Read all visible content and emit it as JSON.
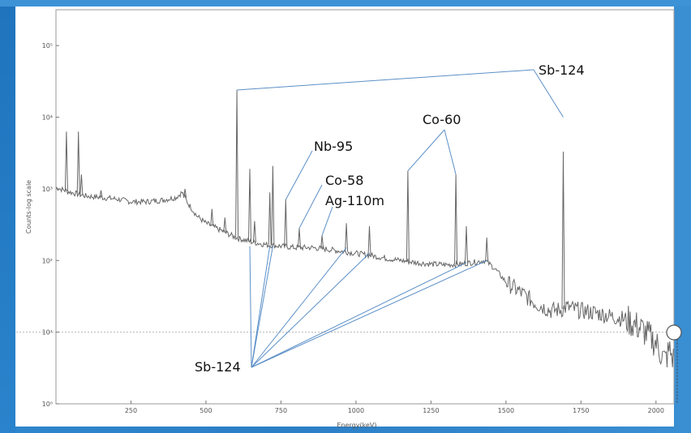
{
  "chart_data": {
    "type": "line",
    "title": "",
    "xlabel": "Energy(keV)",
    "ylabel": "Counts-log scale",
    "x_ticks": [
      250,
      500,
      750,
      1000,
      1250,
      1500,
      1750,
      2000
    ],
    "y_ticks": [
      {
        "exp": 0,
        "label": "10⁰"
      },
      {
        "exp": 1,
        "label": "10¹"
      },
      {
        "exp": 2,
        "label": "10²"
      },
      {
        "exp": 3,
        "label": "10³"
      },
      {
        "exp": 4,
        "label": "10⁴"
      },
      {
        "exp": 5,
        "label": "10⁵"
      }
    ],
    "xlim": [
      0,
      2060
    ],
    "ylim_log10": [
      0,
      5.5
    ],
    "y_scale": "log",
    "grid": false,
    "reference_line": {
      "y_log10": 1.0,
      "style": "dotted"
    },
    "series": [
      {
        "color": "#666666",
        "continuum": [
          [
            0,
            3.02
          ],
          [
            50,
            2.95
          ],
          [
            100,
            2.9
          ],
          [
            150,
            2.88
          ],
          [
            200,
            2.86
          ],
          [
            250,
            2.82
          ],
          [
            300,
            2.82
          ],
          [
            350,
            2.84
          ],
          [
            400,
            2.88
          ],
          [
            420,
            2.95
          ],
          [
            440,
            2.8
          ],
          [
            470,
            2.62
          ],
          [
            500,
            2.52
          ],
          [
            550,
            2.42
          ],
          [
            600,
            2.32
          ],
          [
            650,
            2.26
          ],
          [
            700,
            2.22
          ],
          [
            750,
            2.2
          ],
          [
            800,
            2.18
          ],
          [
            850,
            2.18
          ],
          [
            900,
            2.16
          ],
          [
            950,
            2.13
          ],
          [
            1000,
            2.1
          ],
          [
            1050,
            2.07
          ],
          [
            1100,
            2.03
          ],
          [
            1150,
            2.0
          ],
          [
            1200,
            1.97
          ],
          [
            1250,
            1.95
          ],
          [
            1300,
            1.94
          ],
          [
            1350,
            1.95
          ],
          [
            1400,
            1.98
          ],
          [
            1430,
            2.0
          ],
          [
            1460,
            1.9
          ],
          [
            1500,
            1.7
          ],
          [
            1550,
            1.55
          ],
          [
            1600,
            1.4
          ],
          [
            1650,
            1.3
          ],
          [
            1690,
            1.32
          ],
          [
            1700,
            1.35
          ],
          [
            1750,
            1.3
          ],
          [
            1800,
            1.27
          ],
          [
            1850,
            1.22
          ],
          [
            1900,
            1.18
          ],
          [
            1950,
            1.05
          ],
          [
            2000,
            0.85
          ],
          [
            2030,
            0.6
          ],
          [
            2045,
            0.75
          ],
          [
            2060,
            0.6
          ]
        ],
        "peaks": [
          {
            "x": 35,
            "y": 3.8
          },
          {
            "x": 75,
            "y": 3.8
          },
          {
            "x": 85,
            "y": 3.2
          },
          {
            "x": 150,
            "y": 2.98
          },
          {
            "x": 430,
            "y": 3.0
          },
          {
            "x": 520,
            "y": 2.72
          },
          {
            "x": 563,
            "y": 2.6
          },
          {
            "x": 603,
            "y": 4.38
          },
          {
            "x": 646,
            "y": 3.28
          },
          {
            "x": 662,
            "y": 2.55
          },
          {
            "x": 713,
            "y": 2.95
          },
          {
            "x": 723,
            "y": 3.32
          },
          {
            "x": 766,
            "y": 2.85
          },
          {
            "x": 811,
            "y": 2.45
          },
          {
            "x": 887,
            "y": 2.35
          },
          {
            "x": 968,
            "y": 2.52
          },
          {
            "x": 1045,
            "y": 2.48
          },
          {
            "x": 1173,
            "y": 3.25
          },
          {
            "x": 1333,
            "y": 3.2
          },
          {
            "x": 1368,
            "y": 2.48
          },
          {
            "x": 1436,
            "y": 2.32
          },
          {
            "x": 1691,
            "y": 3.52
          }
        ]
      }
    ],
    "annotations": [
      {
        "text": "Sb-124",
        "pointers": [
          [
            603,
            4.38
          ],
          [
            1691,
            4.0
          ]
        ]
      },
      {
        "text": "Co-60",
        "pointers": [
          [
            1173,
            3.25
          ],
          [
            1333,
            3.2
          ]
        ]
      },
      {
        "text": "Nb-95",
        "pointers": [
          [
            766,
            2.85
          ]
        ]
      },
      {
        "text": "Co-58",
        "pointers": [
          [
            811,
            2.45
          ]
        ]
      },
      {
        "text": "Ag-110m",
        "pointers": [
          [
            887,
            2.35
          ]
        ]
      },
      {
        "text": "Sb-124",
        "pointers": [
          [
            646,
            2.2
          ],
          [
            713,
            2.2
          ],
          [
            723,
            2.2
          ],
          [
            968,
            2.18
          ],
          [
            1045,
            2.1
          ],
          [
            1368,
            1.97
          ],
          [
            1436,
            2.0
          ]
        ]
      }
    ]
  }
}
